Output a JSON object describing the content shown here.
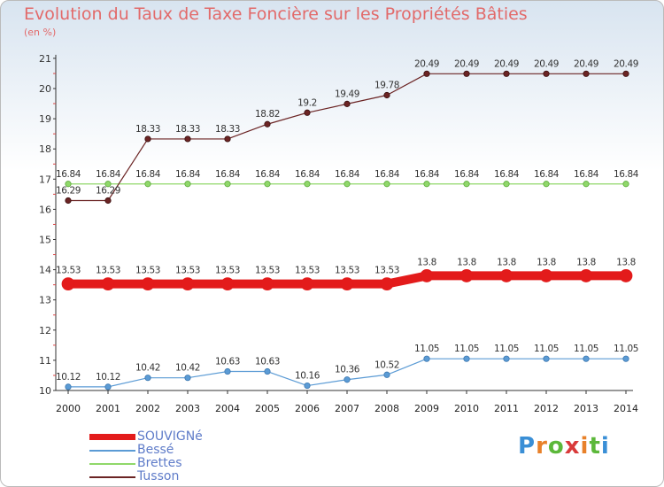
{
  "chart_data": {
    "type": "line",
    "title": "Evolution du Taux de Taxe Foncière sur les Propriétés Bâties",
    "ylabel": "(en %)",
    "xlabel": "",
    "ylim": [
      10,
      21
    ],
    "yticks": [
      "10",
      "11",
      "12",
      "13",
      "14",
      "15",
      "16",
      "17",
      "18",
      "19",
      "20",
      "21"
    ],
    "categories": [
      "2000",
      "2001",
      "2002",
      "2003",
      "2004",
      "2005",
      "2006",
      "2007",
      "2008",
      "2009",
      "2010",
      "2011",
      "2012",
      "2013",
      "2014"
    ],
    "series": [
      {
        "name": "SOUVIGNé",
        "color": "#e31b1b",
        "values": [
          13.53,
          13.53,
          13.53,
          13.53,
          13.53,
          13.53,
          13.53,
          13.53,
          13.53,
          13.8,
          13.8,
          13.8,
          13.8,
          13.8,
          13.8
        ],
        "labels": [
          "13.53",
          "13.53",
          "13.53",
          "13.53",
          "13.53",
          "13.53",
          "13.53",
          "13.53",
          "13.53",
          "13.8",
          "13.8",
          "13.8",
          "13.8",
          "13.8",
          "13.8"
        ]
      },
      {
        "name": "Bessé",
        "color": "#5b9bd5",
        "values": [
          10.12,
          10.12,
          10.42,
          10.42,
          10.63,
          10.63,
          10.16,
          10.36,
          10.52,
          11.05,
          11.05,
          11.05,
          11.05,
          11.05,
          11.05
        ],
        "labels": [
          "10.12",
          "10.12",
          "10.42",
          "10.42",
          "10.63",
          "10.63",
          "10.16",
          "10.36",
          "10.52",
          "11.05",
          "11.05",
          "11.05",
          "11.05",
          "11.05",
          "11.05"
        ]
      },
      {
        "name": "Brettes",
        "color": "#90d86a",
        "values": [
          16.84,
          16.84,
          16.84,
          16.84,
          16.84,
          16.84,
          16.84,
          16.84,
          16.84,
          16.84,
          16.84,
          16.84,
          16.84,
          16.84,
          16.84
        ],
        "labels": [
          "16.84",
          "16.84",
          "16.84",
          "16.84",
          "16.84",
          "16.84",
          "16.84",
          "16.84",
          "16.84",
          "16.84",
          "16.84",
          "16.84",
          "16.84",
          "16.84",
          "16.84"
        ]
      },
      {
        "name": "Tusson",
        "color": "#6b2424",
        "values": [
          16.29,
          16.29,
          18.33,
          18.33,
          18.33,
          18.82,
          19.2,
          19.49,
          19.78,
          20.49,
          20.49,
          20.49,
          20.49,
          20.49,
          20.49
        ],
        "labels": [
          "16.29",
          "16.29",
          "18.33",
          "18.33",
          "18.33",
          "18.82",
          "19.2",
          "19.49",
          "19.78",
          "20.49",
          "20.49",
          "20.49",
          "20.49",
          "20.49",
          "20.49"
        ]
      }
    ],
    "legend_position": "bottom-left"
  },
  "logo": {
    "text": "Proxiti"
  }
}
